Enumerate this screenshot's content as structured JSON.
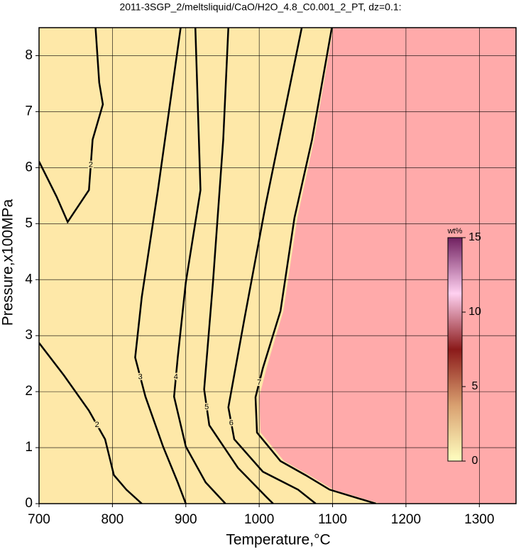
{
  "chart_data": {
    "type": "contour",
    "title": "2011-3SGP_2/meltsliquid/CaO/H2O_4.8_C0.001_2_PT, dz=0.1:",
    "xlabel": "Temperature,°C",
    "ylabel": "Pressure,x100MPa",
    "xlim": [
      700,
      1350
    ],
    "ylim": [
      0,
      8.5
    ],
    "xticks": [
      700,
      800,
      900,
      1000,
      1100,
      1200,
      1300
    ],
    "yticks": [
      0,
      1,
      2,
      3,
      4,
      5,
      6,
      7,
      8
    ],
    "grid": true,
    "background_color": "#fee8a8",
    "saturated_color": "#ffaaaa",
    "boundary": {
      "x": [
        1101,
        1075,
        1052,
        1033,
        1010,
        1000,
        1002,
        1034,
        1068,
        1101,
        1165
      ],
      "y": [
        8.5,
        6.5,
        5.1,
        3.44,
        2.42,
        1.9,
        1.27,
        0.76,
        0.51,
        0.25,
        0
      ]
    },
    "contours": [
      {
        "level": 2,
        "x": [
          700,
          734,
          768,
          790,
          802,
          819,
          840
        ],
        "y": [
          2.87,
          2.29,
          1.66,
          1.15,
          0.51,
          0.25,
          0
        ]
      },
      {
        "level": 2,
        "x": [
          700,
          724,
          739,
          768,
          773,
          787,
          782,
          777
        ],
        "y": [
          6.11,
          5.48,
          5.03,
          5.6,
          6.5,
          7.13,
          7.52,
          8.5
        ]
      },
      {
        "level": 3,
        "x": [
          893,
          862,
          840,
          831,
          845,
          869,
          889,
          900
        ],
        "y": [
          8.5,
          5.6,
          3.69,
          2.61,
          1.91,
          1.02,
          0.38,
          0
        ]
      },
      {
        "level": 4,
        "x": [
          913,
          920,
          900,
          889,
          884,
          900,
          927,
          954
        ],
        "y": [
          8.5,
          5.6,
          3.95,
          2.61,
          1.91,
          1.02,
          0.38,
          0
        ]
      },
      {
        "level": 5,
        "x": [
          958,
          951,
          937,
          925,
          932,
          971,
          1009,
          1019
        ],
        "y": [
          8.5,
          6.5,
          3.95,
          2.04,
          1.4,
          0.64,
          0.13,
          0
        ]
      },
      {
        "level": 6,
        "x": [
          1058,
          1009,
          980,
          958,
          966,
          1005,
          1053,
          1077
        ],
        "y": [
          8.5,
          5.35,
          3.31,
          1.72,
          1.15,
          0.57,
          0.25,
          0
        ]
      },
      {
        "level": 7,
        "x": [
          1099,
          1072,
          1048,
          1029,
          1005,
          995,
          997,
          1029,
          1063,
          1096,
          1159
        ],
        "y": [
          8.5,
          6.5,
          5.1,
          3.44,
          2.42,
          1.9,
          1.27,
          0.76,
          0.51,
          0.25,
          0
        ]
      }
    ],
    "colorbar": {
      "label": "wt%",
      "lim": [
        0,
        15
      ],
      "ticks": [
        0,
        5,
        10,
        15
      ],
      "colors": [
        "#ffffc0",
        "#d9a070",
        "#8b1a1a",
        "#ffd0f0",
        "#702060"
      ]
    }
  }
}
